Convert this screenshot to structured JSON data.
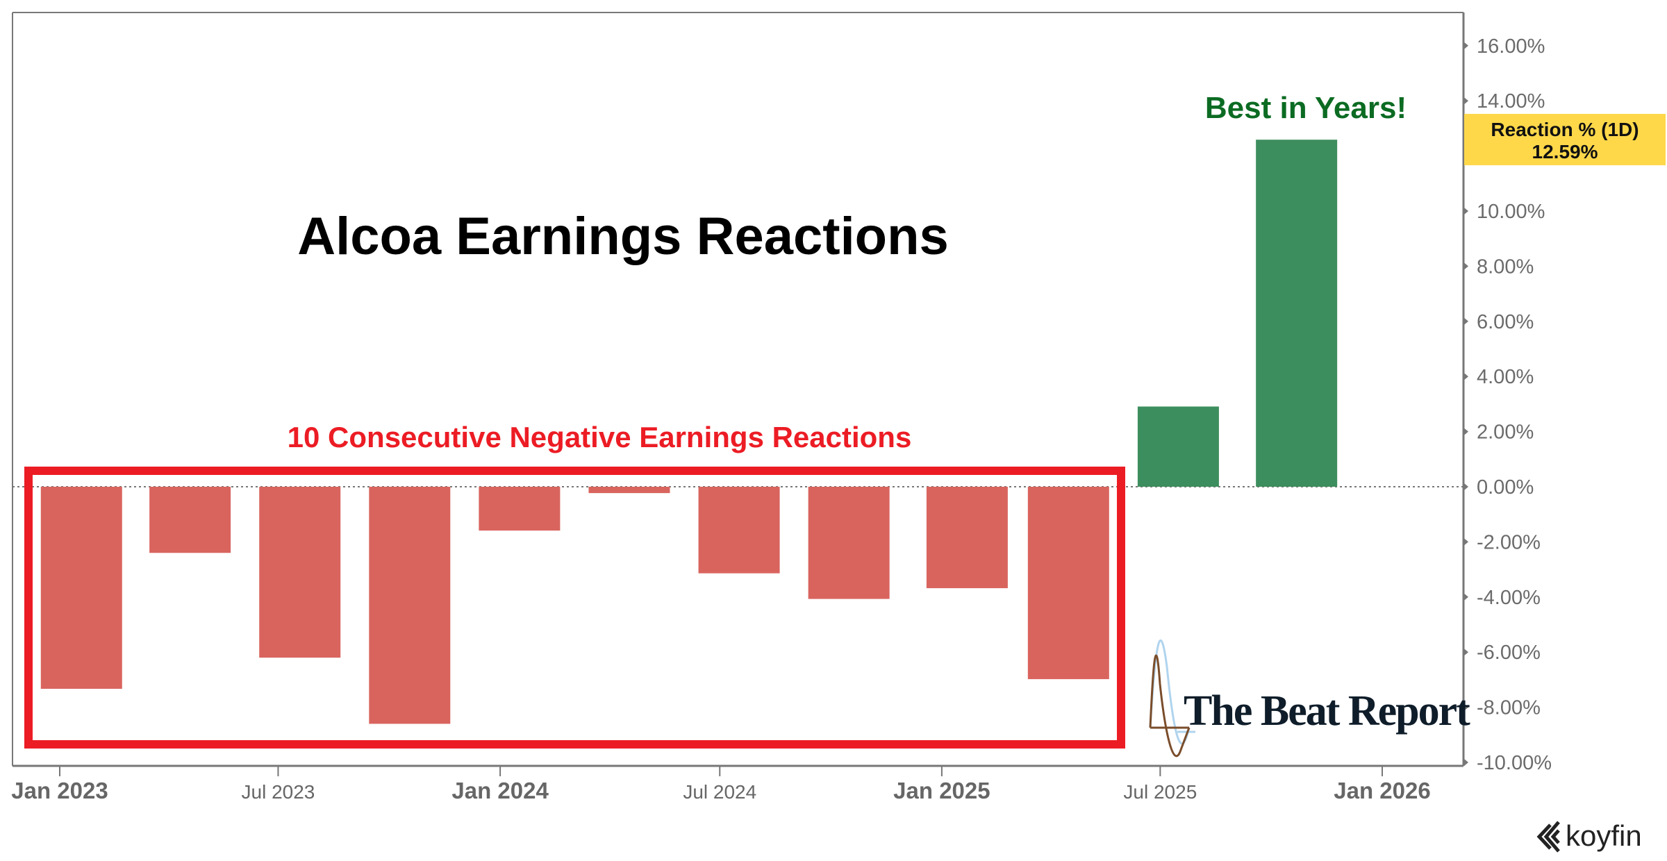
{
  "chart_data": {
    "type": "bar",
    "title": "Alcoa Earnings Reactions",
    "annotations": {
      "negative_streak": "10 Consecutive Negative Earnings Reactions",
      "best": "Best in Years!"
    },
    "series_name": "Reaction % (1D)",
    "last_value_label": "12.59%",
    "x": [
      "2023-01-19",
      "2023-04-19",
      "2023-07-19",
      "2023-10-18",
      "2024-01-17",
      "2024-04-17",
      "2024-07-17",
      "2024-10-16",
      "2025-01-22",
      "2025-04-16",
      "2025-07-16",
      "2025-10-22"
    ],
    "values": [
      -7.33,
      -2.4,
      -6.2,
      -8.6,
      -1.59,
      -0.23,
      -3.14,
      -4.07,
      -3.68,
      -6.98,
      2.91,
      12.59
    ],
    "ylim": [
      -10,
      17
    ],
    "y_ticks": [
      16,
      14,
      12,
      10,
      8,
      6,
      4,
      2,
      0,
      -2,
      -4,
      -6,
      -8,
      -10
    ],
    "y_tick_labels": [
      "16.00%",
      "14.00%",
      "12.00%",
      "10.00%",
      "8.00%",
      "6.00%",
      "4.00%",
      "2.00%",
      "0.00%",
      "-2.00%",
      "-4.00%",
      "-6.00%",
      "-8.00%",
      "-10.00%"
    ],
    "x_ticks": [
      {
        "date": "2023-01-01",
        "label": "Jan 2023",
        "major": true
      },
      {
        "date": "2023-07-01",
        "label": "Jul 2023",
        "major": false
      },
      {
        "date": "2024-01-01",
        "label": "Jan 2024",
        "major": true
      },
      {
        "date": "2024-07-01",
        "label": "Jul 2024",
        "major": false
      },
      {
        "date": "2025-01-01",
        "label": "Jan 2025",
        "major": true
      },
      {
        "date": "2025-07-01",
        "label": "Jul 2025",
        "major": false
      },
      {
        "date": "2026-01-01",
        "label": "Jan 2026",
        "major": true
      }
    ],
    "xlabel": "",
    "ylabel": "",
    "y_axis_position": "right",
    "grid": false,
    "colors": {
      "negative": "#d9645e",
      "positive": "#3d8e5e",
      "highlight_box": "#ec1c24",
      "best_text": "#0b6b22",
      "badge": "#ffd84a"
    }
  },
  "branding": {
    "watermark": "The Beat Report",
    "source": "koyfin"
  }
}
